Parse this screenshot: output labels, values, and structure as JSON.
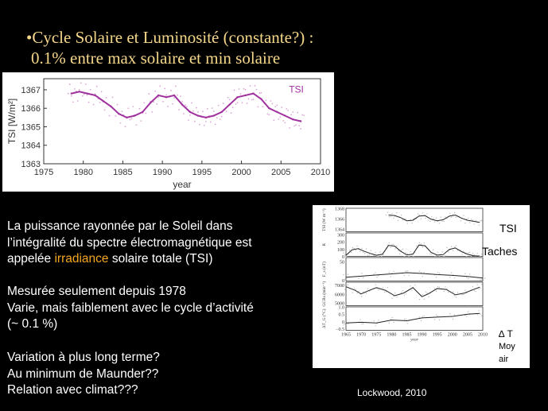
{
  "slide": {
    "title_line1": "•Cycle Solaire et Luminosité (constante?) :",
    "title_line2": "0.1% entre max solaire et min solaire",
    "para1_line1": "La puissance rayonnée par le Soleil dans",
    "para1_line2": "l’intégralité du spectre électromagnétique est",
    "para1_pre": "appelée ",
    "para1_highlight": "irradiance",
    "para1_post": " solaire totale (TSI)",
    "para2_line1": "Mesurée seulement depuis 1978",
    "para2_line2": "Varie, mais faiblement avec le cycle d’activité",
    "para2_line3": "(~ 0.1 %)",
    "para3_line1": "Variation à plus long terme?",
    "para3_line2": "Au minimum de Maunder??",
    "para3_line3": "Relation avec climat???",
    "credit": "Lockwood, 2010",
    "label_tsi": "TSI",
    "label_taches": "Taches",
    "label_delta_t": "∆ T",
    "label_moy": "Moy",
    "label_air": "air",
    "highlight_color": "#f5a623",
    "title_color": "#f5d78a"
  },
  "chart_data": [
    {
      "type": "line",
      "series": [
        {
          "name": "TSI",
          "x": [
            1978.5,
            1979.5,
            1980.5,
            1981.5,
            1982.5,
            1983.5,
            1984.5,
            1985.5,
            1986.5,
            1987.5,
            1988.5,
            1989.5,
            1990.5,
            1991.5,
            1992.5,
            1993.5,
            1994.5,
            1995.5,
            1996.5,
            1997.5,
            1998.5,
            1999.5,
            2000.5,
            2001.5,
            2002.5,
            2003.5,
            2004.5,
            2005.5,
            2006.5,
            2007.5
          ],
          "y": [
            1366.8,
            1366.9,
            1366.8,
            1366.7,
            1366.4,
            1366.1,
            1365.7,
            1365.5,
            1365.6,
            1365.8,
            1366.3,
            1366.7,
            1366.6,
            1366.7,
            1366.2,
            1365.8,
            1365.6,
            1365.5,
            1365.6,
            1365.8,
            1366.2,
            1366.6,
            1366.7,
            1366.8,
            1366.5,
            1366.0,
            1365.8,
            1365.6,
            1365.4,
            1365.3
          ]
        }
      ],
      "xlabel": "year",
      "ylabel": "TSI [W/m²]",
      "xticks": [
        "1975",
        "1980",
        "1985",
        "1990",
        "1995",
        "2000",
        "2005",
        "2010"
      ],
      "yticks": [
        "1363",
        "1364",
        "1365",
        "1366",
        "1367"
      ],
      "xlim": [
        1975,
        2010
      ],
      "ylim": [
        1363,
        1367.6
      ]
    },
    {
      "type": "line",
      "xlabel": "year",
      "xticks": [
        "1965",
        "1970",
        "1975",
        "1980",
        "1985",
        "1990",
        "1995",
        "2000",
        "2005",
        "2010"
      ],
      "xlim": [
        1965,
        2010
      ],
      "panels": [
        {
          "ylabel": "TSI (W m⁻²)",
          "yticks": [
            "1368",
            "1366",
            "1364"
          ],
          "ylim": [
            1363.5,
            1368
          ],
          "series": [
            {
              "x": [
                1979,
                1981,
                1983,
                1985,
                1987,
                1989,
                1991,
                1993,
                1995,
                1997,
                1999,
                2001,
                2003,
                2005,
                2007,
                2009
              ],
              "y": [
                1366.7,
                1366.6,
                1366.2,
                1365.6,
                1365.7,
                1366.5,
                1366.6,
                1365.9,
                1365.6,
                1365.8,
                1366.5,
                1366.7,
                1366.1,
                1365.7,
                1365.5,
                1365.3
              ]
            }
          ]
        },
        {
          "ylabel": "R",
          "yticks": [
            "300",
            "200",
            "100",
            "0"
          ],
          "ylim": [
            0,
            320
          ],
          "series": [
            {
              "x": [
                1965,
                1967,
                1969,
                1971,
                1973,
                1975,
                1977,
                1979,
                1981,
                1983,
                1985,
                1987,
                1989,
                1991,
                1993,
                1995,
                1997,
                1999,
                2001,
                2003,
                2005,
                2007,
                2009
              ],
              "y": [
                15,
                90,
                105,
                70,
                40,
                15,
                30,
                150,
                140,
                70,
                20,
                30,
                155,
                145,
                55,
                18,
                25,
                95,
                115,
                65,
                30,
                8,
                4
              ]
            }
          ]
        },
        {
          "ylabel": "F_s (nT)",
          "yticks": [
            "50",
            "0"
          ],
          "ylim": [
            -2,
            60
          ],
          "series": [
            {
              "x": [
                1965,
                1970,
                1975,
                1980,
                1985,
                1990,
                1995,
                2000,
                2005,
                2010
              ],
              "y": [
                8,
                11,
                14,
                17,
                20,
                18,
                15,
                13,
                10,
                6
              ]
            }
          ]
        },
        {
          "ylabel": "GCRs (min⁻¹)",
          "yticks": [
            "7000",
            "6000",
            "5000"
          ],
          "ylim": [
            4700,
            7300
          ],
          "series": [
            {
              "x": [
                1965,
                1968,
                1970,
                1972,
                1975,
                1978,
                1981,
                1984,
                1987,
                1990,
                1992,
                1995,
                1998,
                2001,
                2004,
                2007,
                2009
              ],
              "y": [
                6800,
                6400,
                6000,
                6300,
                6700,
                6400,
                5800,
                6100,
                6700,
                5700,
                6000,
                6600,
                6500,
                5900,
                6100,
                6500,
                6750
              ]
            }
          ]
        },
        {
          "ylabel": "ΔT_G (°C)",
          "yticks": [
            "1.0",
            "0.5",
            "0",
            "−0.5"
          ],
          "ylim": [
            -0.6,
            1.0
          ],
          "series": [
            {
              "x": [
                1965,
                1970,
                1975,
                1980,
                1985,
                1990,
                1995,
                2000,
                2005,
                2009
              ],
              "y": [
                -0.1,
                -0.05,
                -0.1,
                0.1,
                0.05,
                0.25,
                0.3,
                0.35,
                0.5,
                0.55
              ]
            }
          ]
        }
      ]
    }
  ]
}
